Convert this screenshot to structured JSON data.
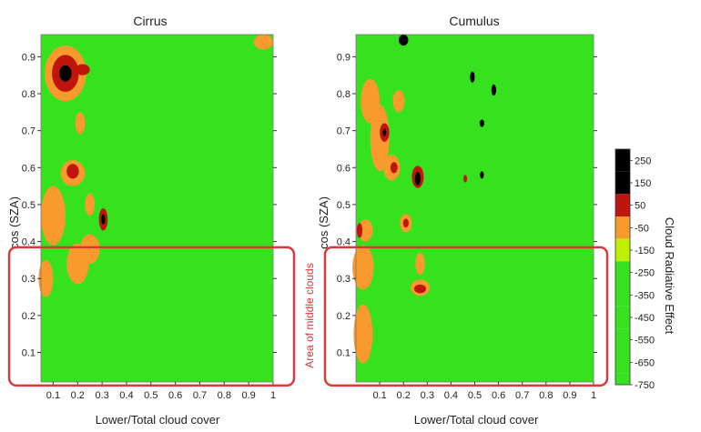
{
  "chart_data": {
    "type": "heatmap",
    "panels": [
      {
        "title": "Cirrus",
        "xlabel": "Lower/Total cloud cover",
        "ylabel": "cos (SZA)",
        "xlim": [
          0.05,
          1.0
        ],
        "ylim": [
          0.02,
          0.96
        ],
        "xticks": [
          "0.1",
          "0.2",
          "0.3",
          "0.4",
          "0.5",
          "0.6",
          "0.7",
          "0.8",
          "0.9",
          "1"
        ],
        "yticks": [
          "0.1",
          "0.2",
          "0.3",
          "0.4",
          "0.5",
          "0.6",
          "0.7",
          "0.8",
          "0.9"
        ],
        "hotspots": [
          {
            "x": 0.15,
            "y": 0.855,
            "rx": 0.085,
            "ry": 0.075,
            "value": 20
          },
          {
            "x": 0.15,
            "y": 0.855,
            "rx": 0.055,
            "ry": 0.05,
            "value": 100
          },
          {
            "x": 0.15,
            "y": 0.855,
            "rx": 0.025,
            "ry": 0.022,
            "value": 200
          },
          {
            "x": 0.22,
            "y": 0.865,
            "rx": 0.03,
            "ry": 0.015,
            "value": 100
          },
          {
            "x": 0.18,
            "y": 0.585,
            "rx": 0.05,
            "ry": 0.035,
            "value": 20
          },
          {
            "x": 0.18,
            "y": 0.59,
            "rx": 0.025,
            "ry": 0.02,
            "value": 100
          },
          {
            "x": 0.305,
            "y": 0.46,
            "rx": 0.018,
            "ry": 0.03,
            "value": 100
          },
          {
            "x": 0.305,
            "y": 0.46,
            "rx": 0.008,
            "ry": 0.014,
            "value": 200
          },
          {
            "x": 0.25,
            "y": 0.5,
            "rx": 0.02,
            "ry": 0.03,
            "value": 20
          },
          {
            "x": 0.2,
            "y": 0.34,
            "rx": 0.045,
            "ry": 0.055,
            "value": 20
          },
          {
            "x": 0.21,
            "y": 0.72,
            "rx": 0.02,
            "ry": 0.03,
            "value": 20
          },
          {
            "x": 0.1,
            "y": 0.47,
            "rx": 0.05,
            "ry": 0.08,
            "value": -40
          },
          {
            "x": 0.07,
            "y": 0.3,
            "rx": 0.03,
            "ry": 0.05,
            "value": -40
          },
          {
            "x": 0.25,
            "y": 0.38,
            "rx": 0.04,
            "ry": 0.04,
            "value": -40
          },
          {
            "x": 0.96,
            "y": 0.94,
            "rx": 0.04,
            "ry": 0.02,
            "value": -40
          }
        ]
      },
      {
        "title": "Cumulus",
        "xlabel": "Lower/Total cloud cover",
        "ylabel": "cos (SZA)",
        "xlim": [
          0.0,
          1.0
        ],
        "ylim": [
          0.02,
          0.96
        ],
        "xticks": [
          "0.1",
          "0.2",
          "0.3",
          "0.4",
          "0.5",
          "0.6",
          "0.7",
          "0.8",
          "0.9",
          "1"
        ],
        "yticks": [
          "0.1",
          "0.2",
          "0.3",
          "0.4",
          "0.5",
          "0.6",
          "0.7",
          "0.8",
          "0.9"
        ],
        "hotspots": [
          {
            "x": 0.03,
            "y": 0.33,
            "rx": 0.045,
            "ry": 0.06,
            "value": 20
          },
          {
            "x": 0.04,
            "y": 0.43,
            "rx": 0.03,
            "ry": 0.03,
            "value": 20
          },
          {
            "x": 0.015,
            "y": 0.43,
            "rx": 0.012,
            "ry": 0.02,
            "value": 100
          },
          {
            "x": 0.1,
            "y": 0.68,
            "rx": 0.04,
            "ry": 0.09,
            "value": 20
          },
          {
            "x": 0.12,
            "y": 0.695,
            "rx": 0.02,
            "ry": 0.025,
            "value": 100
          },
          {
            "x": 0.12,
            "y": 0.695,
            "rx": 0.008,
            "ry": 0.01,
            "value": 200
          },
          {
            "x": 0.15,
            "y": 0.6,
            "rx": 0.035,
            "ry": 0.035,
            "value": 20
          },
          {
            "x": 0.16,
            "y": 0.6,
            "rx": 0.015,
            "ry": 0.015,
            "value": 100
          },
          {
            "x": 0.26,
            "y": 0.575,
            "rx": 0.025,
            "ry": 0.03,
            "value": 100
          },
          {
            "x": 0.26,
            "y": 0.57,
            "rx": 0.012,
            "ry": 0.018,
            "value": 200
          },
          {
            "x": 0.21,
            "y": 0.45,
            "rx": 0.025,
            "ry": 0.025,
            "value": 20
          },
          {
            "x": 0.21,
            "y": 0.45,
            "rx": 0.012,
            "ry": 0.012,
            "value": 100
          },
          {
            "x": 0.27,
            "y": 0.275,
            "rx": 0.04,
            "ry": 0.022,
            "value": 20
          },
          {
            "x": 0.27,
            "y": 0.272,
            "rx": 0.025,
            "ry": 0.012,
            "value": 100
          },
          {
            "x": 0.27,
            "y": 0.34,
            "rx": 0.02,
            "ry": 0.03,
            "value": 20
          },
          {
            "x": 0.18,
            "y": 0.78,
            "rx": 0.025,
            "ry": 0.03,
            "value": 20
          },
          {
            "x": 0.2,
            "y": 0.945,
            "rx": 0.02,
            "ry": 0.015,
            "value": 200
          },
          {
            "x": 0.49,
            "y": 0.845,
            "rx": 0.01,
            "ry": 0.015,
            "value": 200
          },
          {
            "x": 0.58,
            "y": 0.81,
            "rx": 0.01,
            "ry": 0.015,
            "value": 200
          },
          {
            "x": 0.53,
            "y": 0.72,
            "rx": 0.01,
            "ry": 0.01,
            "value": 200
          },
          {
            "x": 0.53,
            "y": 0.58,
            "rx": 0.008,
            "ry": 0.01,
            "value": 200
          },
          {
            "x": 0.46,
            "y": 0.57,
            "rx": 0.008,
            "ry": 0.01,
            "value": 100
          },
          {
            "x": 0.06,
            "y": 0.78,
            "rx": 0.04,
            "ry": 0.06,
            "value": -40
          },
          {
            "x": 0.03,
            "y": 0.15,
            "rx": 0.04,
            "ry": 0.08,
            "value": -40
          }
        ]
      }
    ],
    "colorbar": {
      "label": "Cloud Radiative Effect",
      "ticks": [
        "250",
        "150",
        "50",
        "-50",
        "-150",
        "-250",
        "-350",
        "-450",
        "-550",
        "-650",
        "-750"
      ],
      "levels": [
        {
          "min": 150,
          "max": 250,
          "color": "#000000"
        },
        {
          "min": 50,
          "max": 150,
          "color": "#c0150c"
        },
        {
          "min": -50,
          "max": 50,
          "color": "#f89a2c"
        },
        {
          "min": -150,
          "max": -50,
          "color": "#bff000"
        },
        {
          "min": -750,
          "max": -150,
          "color": "#36e21e"
        }
      ]
    },
    "highlight": {
      "label": "Area of middle clouds",
      "ylim": [
        0.04,
        0.36
      ],
      "color": "#d63a3a"
    }
  }
}
